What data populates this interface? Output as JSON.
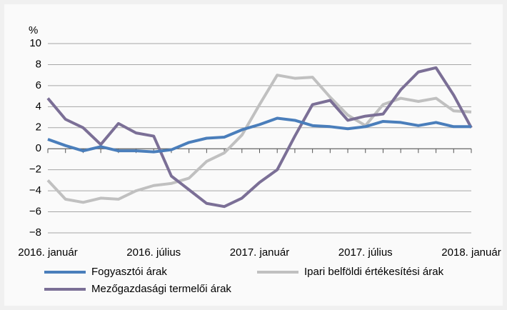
{
  "chart_data": {
    "type": "line",
    "ylabel": "%",
    "categories": [
      "2016. január",
      null,
      null,
      null,
      null,
      null,
      "2016. július",
      null,
      null,
      null,
      null,
      null,
      "2017. január",
      null,
      null,
      null,
      null,
      null,
      "2017. július",
      null,
      null,
      null,
      null,
      null,
      "2018. január"
    ],
    "series": [
      {
        "name": "Fogyasztói árak",
        "color": "#4a7ebb",
        "values": [
          0.9,
          0.3,
          -0.2,
          0.2,
          -0.2,
          -0.2,
          -0.3,
          -0.1,
          0.6,
          1.0,
          1.1,
          1.8,
          2.3,
          2.9,
          2.7,
          2.2,
          2.1,
          1.9,
          2.1,
          2.6,
          2.5,
          2.2,
          2.5,
          2.1,
          2.1
        ]
      },
      {
        "name": "Ipari belföldi értékesítési árak",
        "color": "#c0c0c0",
        "values": [
          -3.0,
          -4.8,
          -5.1,
          -4.7,
          -4.8,
          -4.0,
          -3.5,
          -3.3,
          -2.8,
          -1.2,
          -0.4,
          1.3,
          4.2,
          7.0,
          6.7,
          6.8,
          4.9,
          3.2,
          2.2,
          4.2,
          4.8,
          4.5,
          4.8,
          3.6,
          3.5
        ]
      },
      {
        "name": "Mezőgazdasági termelői árak",
        "color": "#7b6f96",
        "values": [
          4.8,
          2.8,
          2.0,
          0.4,
          2.4,
          1.5,
          1.2,
          -2.6,
          -3.9,
          -5.2,
          -5.5,
          -4.7,
          -3.2,
          -2.0,
          1.2,
          4.2,
          4.6,
          2.7,
          3.1,
          3.3,
          5.6,
          7.3,
          7.7,
          5.1,
          2.0
        ]
      }
    ],
    "ylim": [
      -8,
      10
    ],
    "yticks": [
      {
        "value": -8,
        "label": "−8"
      },
      {
        "value": -6,
        "label": "−6"
      },
      {
        "value": -4,
        "label": "−4"
      },
      {
        "value": -2,
        "label": "−2"
      },
      0,
      2,
      4,
      6,
      8,
      10
    ],
    "grid": true
  }
}
